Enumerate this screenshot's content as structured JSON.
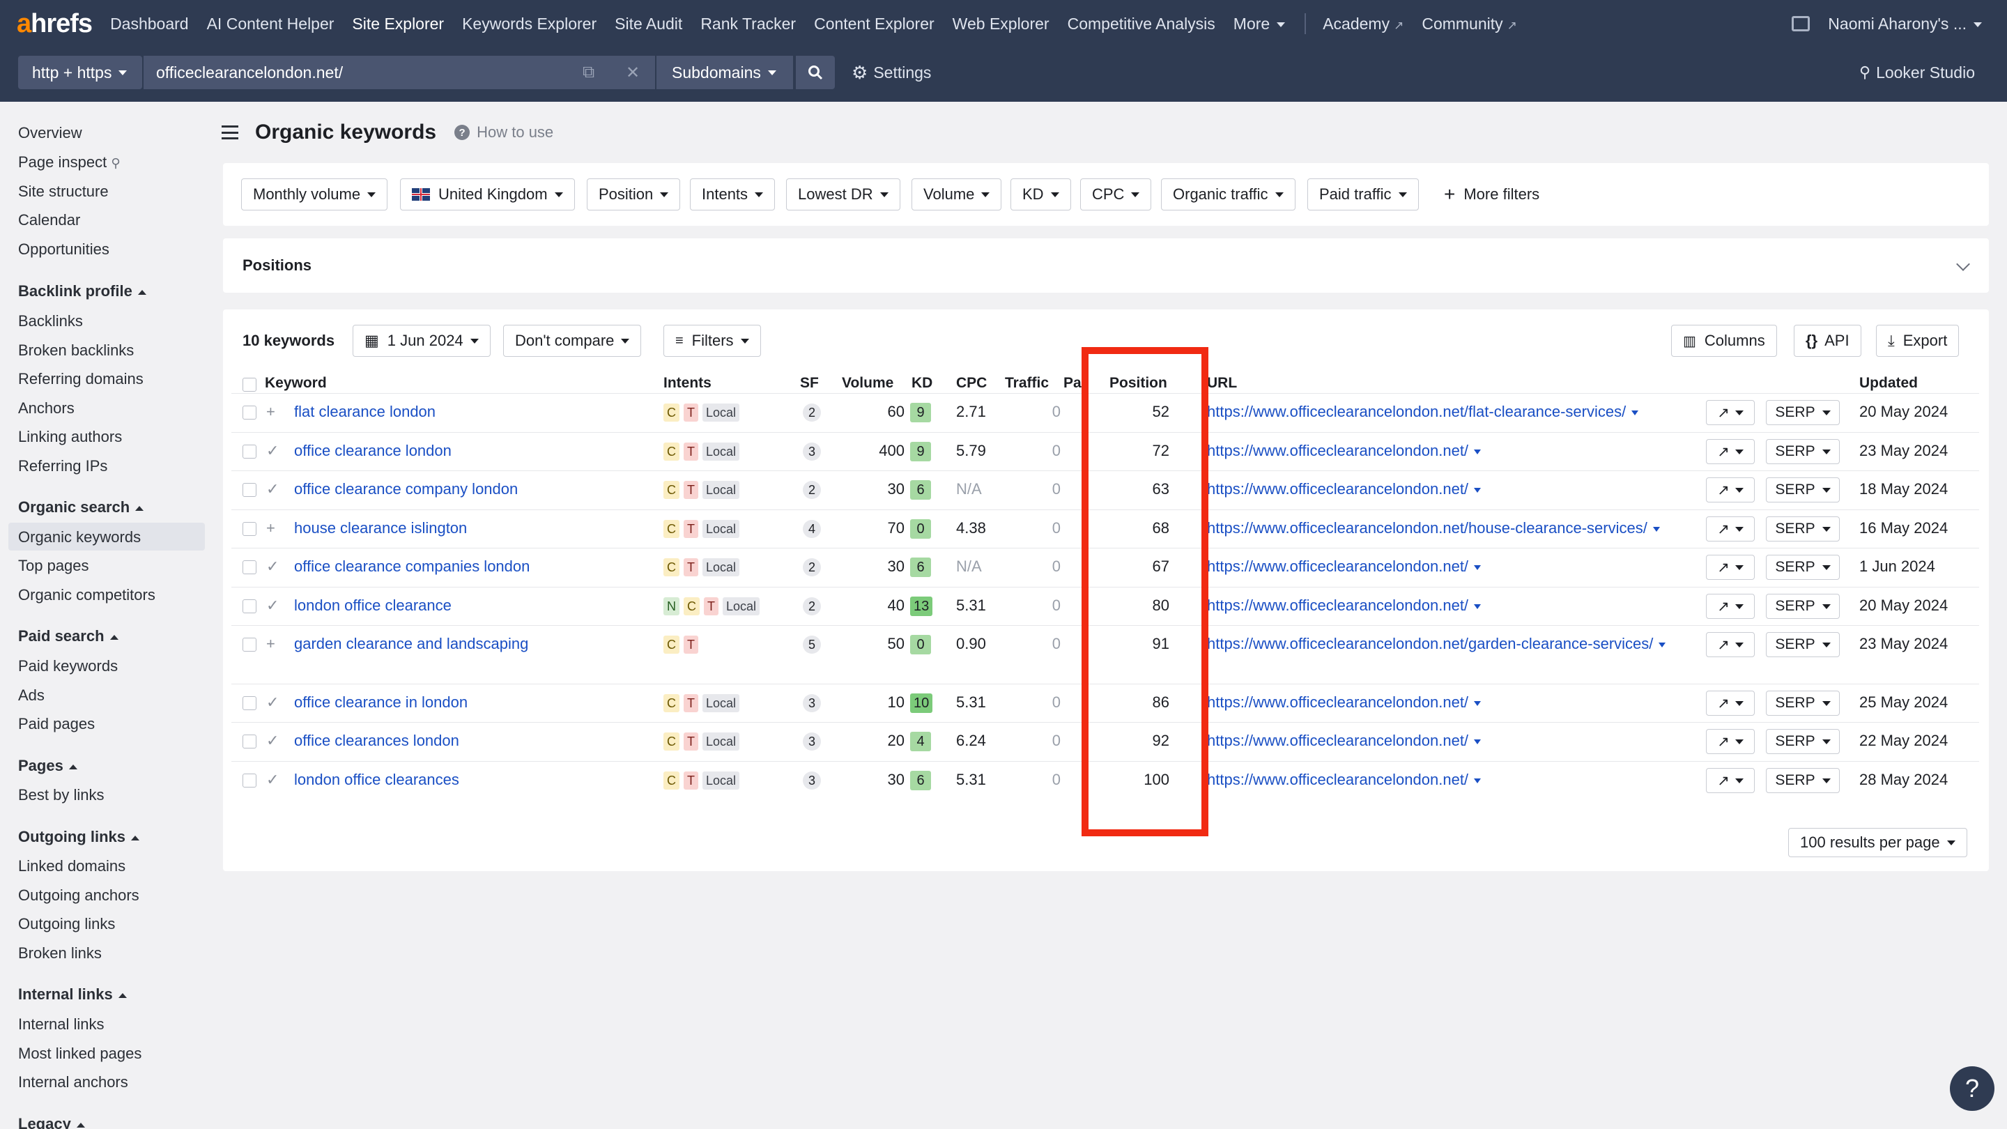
{
  "brand": {
    "logo_a": "a",
    "logo_rest": "hrefs",
    "accent": "#ff8800",
    "nav_bg": "#2f3b52"
  },
  "nav": {
    "items": [
      "Dashboard",
      "AI Content Helper",
      "Site Explorer",
      "Keywords Explorer",
      "Site Audit",
      "Rank Tracker",
      "Content Explorer",
      "Web Explorer",
      "Competitive Analysis"
    ],
    "more": "More",
    "academy": "Academy",
    "community": "Community",
    "user": "Naomi Aharony's ..."
  },
  "searchbar": {
    "protocol": "http + https",
    "url": "officeclearancelondon.net/",
    "mode": "Subdomains",
    "settings": "Settings",
    "looker": "Looker Studio"
  },
  "sidebar": {
    "top": [
      "Overview",
      "Page inspect",
      "Site structure",
      "Calendar",
      "Opportunities"
    ],
    "sections": [
      {
        "title": "Backlink profile",
        "items": [
          "Backlinks",
          "Broken backlinks",
          "Referring domains",
          "Anchors",
          "Linking authors",
          "Referring IPs"
        ]
      },
      {
        "title": "Organic search",
        "items": [
          "Organic keywords",
          "Top pages",
          "Organic competitors"
        ]
      },
      {
        "title": "Paid search",
        "items": [
          "Paid keywords",
          "Ads",
          "Paid pages"
        ]
      },
      {
        "title": "Pages",
        "items": [
          "Best by links"
        ]
      },
      {
        "title": "Outgoing links",
        "items": [
          "Linked domains",
          "Outgoing anchors",
          "Outgoing links",
          "Broken links"
        ]
      },
      {
        "title": "Internal links",
        "items": [
          "Internal links",
          "Most linked pages",
          "Internal anchors"
        ]
      },
      {
        "title": "Legacy",
        "items": []
      }
    ]
  },
  "page": {
    "title": "Organic keywords",
    "howto": "How to use"
  },
  "filters": [
    "Monthly volume",
    "United Kingdom",
    "Position",
    "Intents",
    "Lowest DR",
    "Volume",
    "KD",
    "CPC",
    "Organic traffic",
    "Paid traffic"
  ],
  "more_filters": "More filters",
  "positions_label": "Positions",
  "table_toolbar": {
    "count": "10 keywords",
    "date": "1 Jun 2024",
    "compare": "Don't compare",
    "filters": "Filters",
    "columns": "Columns",
    "api": "API",
    "export": "Export"
  },
  "columns": {
    "keyword": "Keyword",
    "intents": "Intents",
    "sf": "SF",
    "volume": "Volume",
    "kd": "KD",
    "cpc": "CPC",
    "traffic": "Traffic",
    "paid": "Pai",
    "position": "Position",
    "url": "URL",
    "updated": "Updated"
  },
  "rows": [
    {
      "keyword": "flat clearance london",
      "added": true,
      "intents": [
        "C",
        "T",
        "Local"
      ],
      "sf": "2",
      "volume": "60",
      "kd": "9",
      "cpc": "2.71",
      "traffic": "0",
      "position": "52",
      "url": "https://www.officeclearancelondon.net/flat-clearance-services/",
      "serp": "SERP",
      "updated": "20 May 2024"
    },
    {
      "keyword": "office clearance london",
      "added": false,
      "intents": [
        "C",
        "T",
        "Local"
      ],
      "sf": "3",
      "volume": "400",
      "kd": "9",
      "cpc": "5.79",
      "traffic": "0",
      "position": "72",
      "url": "https://www.officeclearancelondon.net/",
      "serp": "SERP",
      "updated": "23 May 2024"
    },
    {
      "keyword": "office clearance company london",
      "added": false,
      "intents": [
        "C",
        "T",
        "Local"
      ],
      "sf": "2",
      "volume": "30",
      "kd": "6",
      "cpc": "N/A",
      "traffic": "0",
      "position": "63",
      "url": "https://www.officeclearancelondon.net/",
      "serp": "SERP",
      "updated": "18 May 2024"
    },
    {
      "keyword": "house clearance islington",
      "added": true,
      "intents": [
        "C",
        "T",
        "Local"
      ],
      "sf": "4",
      "volume": "70",
      "kd": "0",
      "cpc": "4.38",
      "traffic": "0",
      "position": "68",
      "url": "https://www.officeclearancelondon.net/house-clearance-services/",
      "serp": "SERP",
      "updated": "16 May 2024"
    },
    {
      "keyword": "office clearance companies london",
      "added": false,
      "intents": [
        "C",
        "T",
        "Local"
      ],
      "sf": "2",
      "volume": "30",
      "kd": "6",
      "cpc": "N/A",
      "traffic": "0",
      "position": "67",
      "url": "https://www.officeclearancelondon.net/",
      "serp": "SERP",
      "updated": "1 Jun 2024"
    },
    {
      "keyword": "london office clearance",
      "added": false,
      "intents": [
        "N",
        "C",
        "T",
        "Local"
      ],
      "sf": "2",
      "volume": "40",
      "kd": "13",
      "cpc": "5.31",
      "traffic": "0",
      "position": "80",
      "url": "https://www.officeclearancelondon.net/",
      "serp": "SERP",
      "updated": "20 May 2024"
    },
    {
      "keyword": "garden clearance and landscaping",
      "added": true,
      "intents": [
        "C",
        "T"
      ],
      "sf": "5",
      "volume": "50",
      "kd": "0",
      "cpc": "0.90",
      "traffic": "0",
      "position": "91",
      "url": "https://www.officeclearancelondon.net/garden-clearance-services/",
      "serp": "SERP",
      "updated": "23 May 2024"
    },
    {
      "keyword": "office clearance in london",
      "added": false,
      "intents": [
        "C",
        "T",
        "Local"
      ],
      "sf": "3",
      "volume": "10",
      "kd": "10",
      "cpc": "5.31",
      "traffic": "0",
      "position": "86",
      "url": "https://www.officeclearancelondon.net/",
      "serp": "SERP",
      "updated": "25 May 2024"
    },
    {
      "keyword": "office clearances london",
      "added": false,
      "intents": [
        "C",
        "T",
        "Local"
      ],
      "sf": "3",
      "volume": "20",
      "kd": "4",
      "cpc": "6.24",
      "traffic": "0",
      "position": "92",
      "url": "https://www.officeclearancelondon.net/",
      "serp": "SERP",
      "updated": "22 May 2024"
    },
    {
      "keyword": "london office clearances",
      "added": false,
      "intents": [
        "C",
        "T",
        "Local"
      ],
      "sf": "3",
      "volume": "30",
      "kd": "6",
      "cpc": "5.31",
      "traffic": "0",
      "position": "100",
      "url": "https://www.officeclearancelondon.net/",
      "serp": "SERP",
      "updated": "28 May 2024"
    }
  ],
  "results_per_page": "100 results per page",
  "help": "?",
  "colors": {
    "kd_light": "#a6d9a2",
    "kd_mid": "#7ccb7a",
    "highlight": "#f12a12",
    "link": "#1a4fc4"
  }
}
